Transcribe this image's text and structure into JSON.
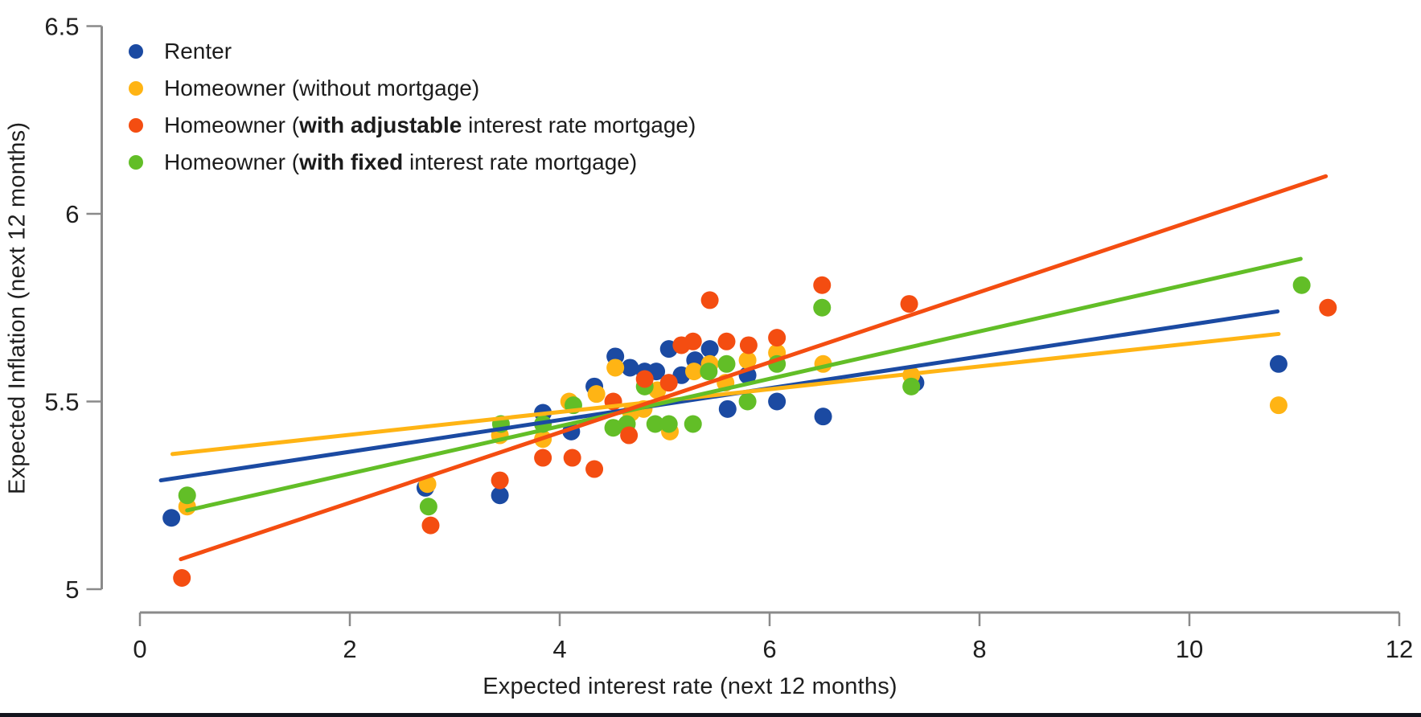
{
  "chart_data": {
    "type": "scatter",
    "title": "",
    "xlabel": "Expected interest rate (next 12 months)",
    "ylabel": "Expected Inflation (next 12 months)",
    "xlim": [
      0,
      12
    ],
    "ylim": [
      5,
      6.5
    ],
    "grid": false,
    "legend_position": "top-left",
    "axis_color": "#8a8a8a",
    "text_color": "#1f1f1f",
    "x_ticks": [
      {
        "value": 0,
        "label": "0"
      },
      {
        "value": 2,
        "label": "2"
      },
      {
        "value": 4,
        "label": "4"
      },
      {
        "value": 6,
        "label": "6"
      },
      {
        "value": 8,
        "label": "8"
      },
      {
        "value": 10,
        "label": "10"
      },
      {
        "value": 12,
        "label": "12"
      }
    ],
    "y_ticks": [
      {
        "value": 5,
        "label": "5"
      },
      {
        "value": 5.5,
        "label": "5.5"
      },
      {
        "value": 6,
        "label": "6"
      },
      {
        "value": 6.5,
        "label": "6.5"
      }
    ],
    "draw_order": [
      0,
      1,
      3,
      2
    ],
    "series": [
      {
        "name": "Renter",
        "color": "#1b4aa2",
        "label_parts": [
          {
            "text": "Renter",
            "bold": false
          }
        ],
        "points": [
          [
            0.3,
            5.19
          ],
          [
            2.72,
            5.27
          ],
          [
            3.43,
            5.25
          ],
          [
            3.84,
            5.47
          ],
          [
            4.11,
            5.42
          ],
          [
            4.33,
            5.54
          ],
          [
            4.53,
            5.62
          ],
          [
            4.67,
            5.59
          ],
          [
            4.81,
            5.58
          ],
          [
            4.92,
            5.58
          ],
          [
            5.04,
            5.64
          ],
          [
            5.16,
            5.57
          ],
          [
            5.29,
            5.61
          ],
          [
            5.43,
            5.64
          ],
          [
            5.6,
            5.48
          ],
          [
            5.79,
            5.57
          ],
          [
            6.07,
            5.5
          ],
          [
            6.51,
            5.46
          ],
          [
            7.39,
            5.55
          ],
          [
            10.85,
            5.6
          ]
        ],
        "trend": {
          "x1": 0.2,
          "y1": 5.29,
          "x2": 10.84,
          "y2": 5.74
        }
      },
      {
        "name": "Homeowner (without mortgage)",
        "color": "#ffb414",
        "label_parts": [
          {
            "text": "Homeowner (without mortgage)",
            "bold": false
          }
        ],
        "points": [
          [
            0.45,
            5.22
          ],
          [
            2.74,
            5.28
          ],
          [
            3.43,
            5.41
          ],
          [
            3.84,
            5.4
          ],
          [
            4.09,
            5.5
          ],
          [
            4.35,
            5.52
          ],
          [
            4.53,
            5.59
          ],
          [
            4.68,
            5.47
          ],
          [
            4.8,
            5.48
          ],
          [
            4.93,
            5.53
          ],
          [
            5.05,
            5.42
          ],
          [
            5.28,
            5.58
          ],
          [
            5.43,
            5.6
          ],
          [
            5.58,
            5.55
          ],
          [
            5.79,
            5.61
          ],
          [
            6.07,
            5.63
          ],
          [
            6.51,
            5.6
          ],
          [
            7.35,
            5.57
          ],
          [
            10.85,
            5.49
          ]
        ],
        "trend": {
          "x1": 0.31,
          "y1": 5.36,
          "x2": 10.85,
          "y2": 5.68
        }
      },
      {
        "name": "Homeowner (with adjustable interest rate mortgage)",
        "color": "#f44d11",
        "label_parts": [
          {
            "text": "Homeowner (",
            "bold": false
          },
          {
            "text": "with adjustable",
            "bold": true
          },
          {
            "text": " interest rate mortgage)",
            "bold": false
          }
        ],
        "points": [
          [
            0.4,
            5.03
          ],
          [
            2.77,
            5.17
          ],
          [
            3.43,
            5.29
          ],
          [
            3.84,
            5.35
          ],
          [
            4.12,
            5.35
          ],
          [
            4.33,
            5.32
          ],
          [
            4.51,
            5.5
          ],
          [
            4.66,
            5.41
          ],
          [
            4.81,
            5.56
          ],
          [
            5.04,
            5.55
          ],
          [
            5.16,
            5.65
          ],
          [
            5.27,
            5.66
          ],
          [
            5.43,
            5.77
          ],
          [
            5.59,
            5.66
          ],
          [
            5.8,
            5.65
          ],
          [
            6.07,
            5.67
          ],
          [
            6.5,
            5.81
          ],
          [
            7.33,
            5.76
          ],
          [
            11.32,
            5.75
          ]
        ],
        "trend": {
          "x1": 0.39,
          "y1": 5.08,
          "x2": 11.3,
          "y2": 6.1
        }
      },
      {
        "name": "Homeowner (with fixed interest rate mortgage)",
        "color": "#62be27",
        "label_parts": [
          {
            "text": "Homeowner (",
            "bold": false
          },
          {
            "text": "with fixed",
            "bold": true
          },
          {
            "text": " interest rate mortgage)",
            "bold": false
          }
        ],
        "points": [
          [
            0.45,
            5.25
          ],
          [
            2.75,
            5.22
          ],
          [
            3.44,
            5.44
          ],
          [
            3.84,
            5.44
          ],
          [
            4.13,
            5.49
          ],
          [
            4.51,
            5.43
          ],
          [
            4.64,
            5.44
          ],
          [
            4.81,
            5.54
          ],
          [
            4.91,
            5.44
          ],
          [
            5.04,
            5.44
          ],
          [
            5.27,
            5.44
          ],
          [
            5.42,
            5.58
          ],
          [
            5.59,
            5.6
          ],
          [
            5.79,
            5.5
          ],
          [
            6.07,
            5.6
          ],
          [
            6.5,
            5.75
          ],
          [
            7.35,
            5.54
          ],
          [
            11.07,
            5.81
          ]
        ],
        "trend": {
          "x1": 0.45,
          "y1": 5.21,
          "x2": 11.06,
          "y2": 5.88
        }
      }
    ]
  }
}
